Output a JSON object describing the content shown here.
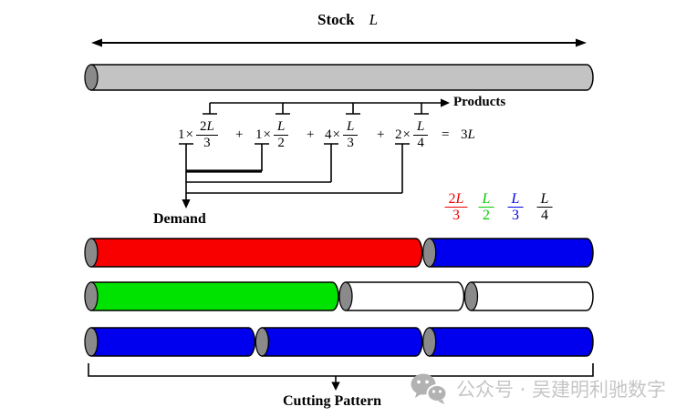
{
  "title": {
    "stock": "Stock",
    "symbol": "L"
  },
  "products": {
    "label": "Products",
    "plus": "+",
    "equals": "=",
    "result": "3L",
    "terms": [
      {
        "coef": "1",
        "times": "×",
        "num": "2L",
        "den": "3"
      },
      {
        "coef": "1",
        "times": "×",
        "num": "L",
        "den": "2"
      },
      {
        "coef": "4",
        "times": "×",
        "num": "L",
        "den": "3"
      },
      {
        "coef": "2",
        "times": "×",
        "num": "L",
        "den": "4"
      }
    ]
  },
  "demand": {
    "label": "Demand"
  },
  "legend": [
    {
      "num": "2L",
      "den": "3",
      "color": "#ee0000"
    },
    {
      "num": "L",
      "den": "2",
      "color": "#00cc00"
    },
    {
      "num": "L",
      "den": "3",
      "color": "#0000ee"
    },
    {
      "num": "L",
      "den": "4",
      "color": "#000000"
    }
  ],
  "patterns": [
    {
      "segments": [
        {
          "piece": "2L/3",
          "fraction": 0.6667,
          "color": "red"
        },
        {
          "piece": "L/3",
          "fraction": 0.3333,
          "color": "blue"
        }
      ]
    },
    {
      "segments": [
        {
          "piece": "L/2",
          "fraction": 0.5,
          "color": "green"
        },
        {
          "piece": "L/4",
          "fraction": 0.25,
          "color": "white"
        },
        {
          "piece": "L/4",
          "fraction": 0.25,
          "color": "white"
        }
      ]
    },
    {
      "segments": [
        {
          "piece": "L/3",
          "fraction": 0.3333,
          "color": "blue"
        },
        {
          "piece": "L/3",
          "fraction": 0.3334,
          "color": "blue"
        },
        {
          "piece": "L/3",
          "fraction": 0.3333,
          "color": "blue"
        }
      ]
    }
  ],
  "cutting_pattern": {
    "label": "Cutting Pattern"
  },
  "watermark": {
    "text": "公众号 · 吴建明利驰数字"
  },
  "colors": {
    "red": "#f80000",
    "green": "#00e300",
    "blue": "#0000ee",
    "white": "#ffffff",
    "stock_body": "#c3c3c3",
    "cap": "#8a8a8a"
  }
}
